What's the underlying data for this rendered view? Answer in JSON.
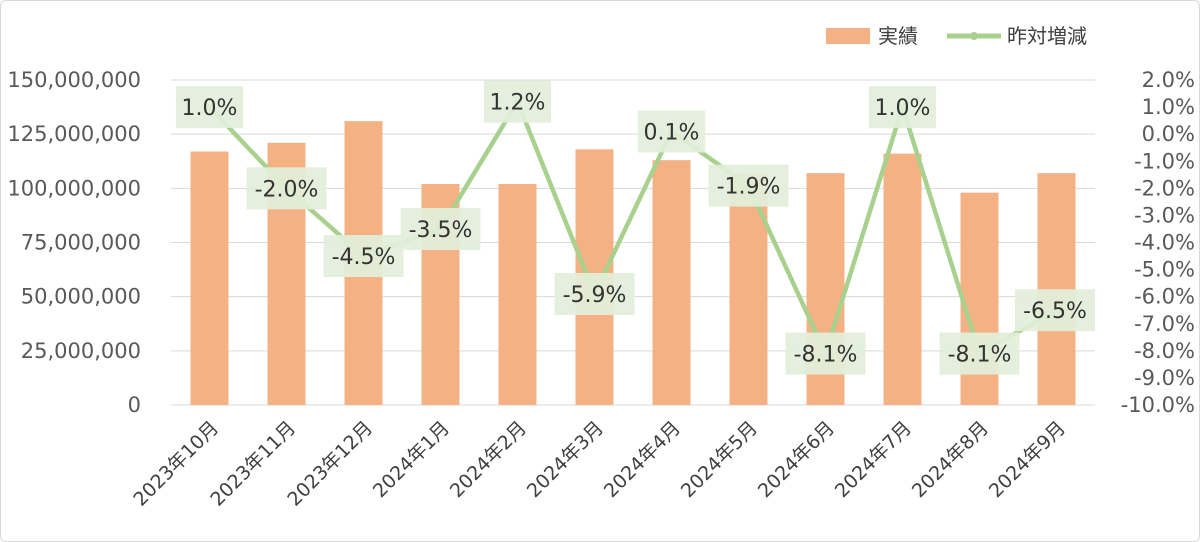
{
  "chart_data": {
    "type": "bar+line",
    "categories": [
      "2023年10月",
      "2023年11月",
      "2023年12月",
      "2024年1月",
      "2024年2月",
      "2024年3月",
      "2024年4月",
      "2024年5月",
      "2024年6月",
      "2024年7月",
      "2024年8月",
      "2024年9月"
    ],
    "series": [
      {
        "name": "実績",
        "type": "bar",
        "axis": "left",
        "color": "#f4b183",
        "values": [
          117000000,
          121000000,
          131000000,
          102000000,
          102000000,
          118000000,
          113000000,
          107000000,
          107000000,
          116000000,
          98000000,
          107000000
        ]
      },
      {
        "name": "昨対増減",
        "type": "line",
        "axis": "right",
        "color": "#a9d18e",
        "values": [
          1.0,
          -2.0,
          -4.5,
          -3.5,
          1.2,
          -5.9,
          0.1,
          -1.9,
          -8.1,
          1.0,
          -8.1,
          -6.5
        ],
        "data_labels": [
          "1.0%",
          "-2.0%",
          "-4.5%",
          "-3.5%",
          "1.2%",
          "-5.9%",
          "0.1%",
          "-1.9%",
          "-8.1%",
          "1.0%",
          "-8.1%",
          "-6.5%"
        ],
        "label_background": "#e2efda"
      }
    ],
    "y_left": {
      "ylim": [
        0,
        150000000
      ],
      "ticks": [
        0,
        25000000,
        50000000,
        75000000,
        100000000,
        125000000,
        150000000
      ],
      "tick_labels": [
        "0",
        "25,000,000",
        "50,000,000",
        "75,000,000",
        "100,000,000",
        "125,000,000",
        "150,000,000"
      ]
    },
    "y_right": {
      "ylim": [
        -10.0,
        2.0
      ],
      "ticks": [
        2.0,
        1.0,
        0.0,
        -1.0,
        -2.0,
        -3.0,
        -4.0,
        -5.0,
        -6.0,
        -7.0,
        -8.0,
        -9.0,
        -10.0
      ],
      "tick_labels": [
        "2.0%",
        "1.0%",
        "0.0%",
        "-1.0%",
        "-2.0%",
        "-3.0%",
        "-4.0%",
        "-5.0%",
        "-6.0%",
        "-7.0%",
        "-8.0%",
        "-9.0%",
        "-10.0%"
      ]
    },
    "legend": {
      "position": "top-right",
      "entries": [
        "実績",
        "昨対増減"
      ]
    },
    "grid": true,
    "gridline_color": "#d9d9d9"
  }
}
